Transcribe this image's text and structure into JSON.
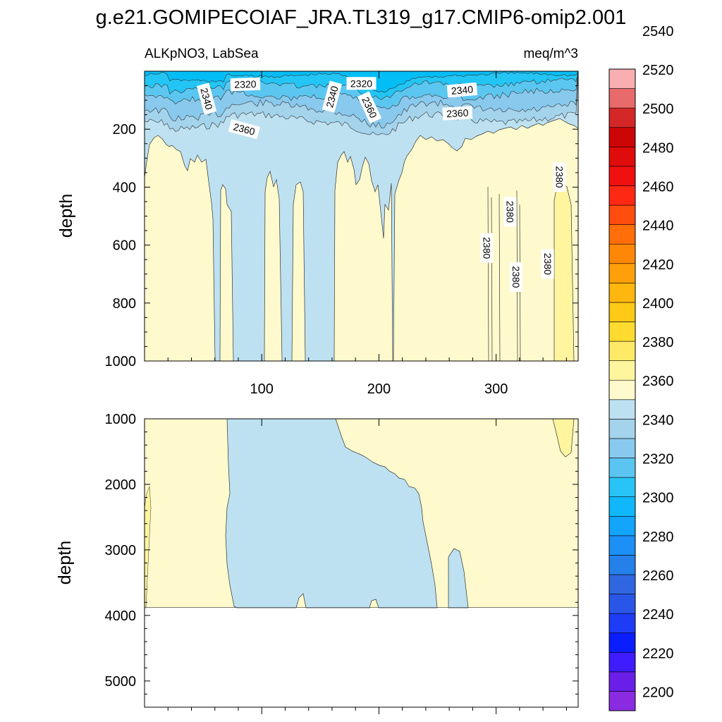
{
  "figure": {
    "title": "g.e21.GOMIPECOIAF_JRA.TL319_g17.CMIP6-omip2.001",
    "variable_label": "ALKpNO3, LabSea",
    "units_label": "meq/m^3"
  },
  "chart_data": [
    {
      "type": "heatmap",
      "panel": "upper",
      "ylabel": "depth",
      "xlabel": "",
      "x_range": [
        0,
        370
      ],
      "ylim": [
        1000,
        0
      ],
      "y_reversed": true,
      "xticks": [
        100,
        200,
        300
      ],
      "xtick_labels": [
        "100",
        "200",
        "300"
      ],
      "yticks": [
        200,
        400,
        600,
        800,
        1000
      ],
      "ytick_labels": [
        "200",
        "400",
        "600",
        "800",
        "1000"
      ],
      "contour_labels": [
        {
          "value": "2320",
          "x": 86,
          "depth": 45
        },
        {
          "value": "2320",
          "x": 185,
          "depth": 42
        },
        {
          "value": "2340",
          "x": 53,
          "depth": 95
        },
        {
          "value": "2340",
          "x": 160,
          "depth": 88
        },
        {
          "value": "2340",
          "x": 271,
          "depth": 65
        },
        {
          "value": "2360",
          "x": 85,
          "depth": 200
        },
        {
          "value": "2360",
          "x": 192,
          "depth": 125
        },
        {
          "value": "2360",
          "x": 267,
          "depth": 145
        },
        {
          "value": "2380",
          "x": 354,
          "depth": 365
        },
        {
          "value": "2380",
          "x": 312,
          "depth": 485
        },
        {
          "value": "2380",
          "x": 292,
          "depth": 610
        },
        {
          "value": "2380",
          "x": 344,
          "depth": 665
        },
        {
          "value": "2380",
          "x": 317,
          "depth": 710
        }
      ]
    },
    {
      "type": "heatmap",
      "panel": "lower",
      "ylabel": "depth",
      "xlabel": "",
      "x_range": [
        0,
        370
      ],
      "ylim": [
        5400,
        1000
      ],
      "y_reversed": true,
      "bottom_depth": 3880,
      "yticks": [
        1000,
        2000,
        3000,
        4000,
        5000
      ],
      "ytick_labels": [
        "1000",
        "2000",
        "3000",
        "4000",
        "5000"
      ]
    }
  ],
  "colorbar": {
    "labels": [
      "2200",
      "2220",
      "2240",
      "2260",
      "2280",
      "2300",
      "2320",
      "2340",
      "2360",
      "2380",
      "2400",
      "2420",
      "2440",
      "2460",
      "2480",
      "2500",
      "2520",
      "2540"
    ],
    "colors": [
      "#8a2be2",
      "#6a1fe8",
      "#3f1bff",
      "#0a1dfc",
      "#1e3cf5",
      "#2a56e8",
      "#3067e0",
      "#2680ea",
      "#1c90f5",
      "#13a4fc",
      "#10b7fb",
      "#28c4f6",
      "#5bc4f1",
      "#8ac9ef",
      "#a4d3ec",
      "#bde1f0",
      "#fffacd",
      "#fff59e",
      "#ffea68",
      "#ffdb30",
      "#ffc915",
      "#ffb60f",
      "#ff9f0a",
      "#ff8708",
      "#ff6e08",
      "#ff4c0f",
      "#ff2813",
      "#f01010",
      "#e00b0b",
      "#cc0606",
      "#d42828",
      "#e86a6a",
      "#f9aeb2"
    ]
  },
  "palette": {
    "deep": "#bde1f0",
    "warm": "#fffacd",
    "brighter_warm": "#fff59e",
    "surface_1": "#03bdf5",
    "surface_2": "#23c5f4",
    "surface_3": "#5bc7f1",
    "surface_4": "#89c9ee",
    "surface_5": "#a4d3ec"
  }
}
